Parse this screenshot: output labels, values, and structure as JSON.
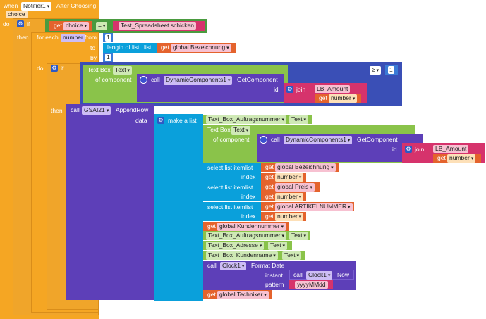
{
  "event": {
    "when": "when",
    "component": "Notifier1",
    "event": "After Choosing",
    "param": "choice"
  },
  "if1": {
    "do": "do",
    "if": "if",
    "get": "get",
    "var": "choice",
    "op": "=",
    "text": "Test_Spreadsheet schicken",
    "then": "then"
  },
  "foreach": {
    "label": "for each",
    "var": "number",
    "from": "from",
    "from_val": "1",
    "to": "to",
    "length_of_list": "length of list",
    "list": "list",
    "get": "get",
    "to_var": "global Bezeichnung",
    "by": "by",
    "by_val": "1",
    "do": "do"
  },
  "if2": {
    "if": "if",
    "textbox": "Text Box",
    "prop": "Text",
    "of_component": "of component",
    "call": "call",
    "dc": "DynamicComponents1",
    "method": "GetComponent",
    "id": "id",
    "join": "join",
    "join_str": "LB_Amount",
    "get": "get",
    "get_var": "number",
    "cmp_op": "≥",
    "cmp_val": "1",
    "then": "then"
  },
  "append": {
    "call": "call",
    "component": "GSAI21",
    "method": "AppendRow",
    "data": "data",
    "make_list": "make a list"
  },
  "list_items": {
    "tb_auftrag": "Text_Box_Auftragsnummer",
    "text": "Text",
    "tb2": "Text Box",
    "tb2_prop": "Text",
    "of_component": "of component",
    "call": "call",
    "dc": "DynamicComponents1",
    "method": "GetComponent",
    "id": "id",
    "join": "join",
    "join_str": "LB_Amount",
    "get": "get",
    "get_var": "number",
    "sel1": "select list item",
    "list": "list",
    "index": "index",
    "sel1_list": "global Bezeichnung",
    "sel2_list": "global Preis",
    "sel3_list": "global ARTIKELNUMMER",
    "kunden": "global Kundennummer",
    "tb_auftrag2": "Text_Box_Auftragsnummer",
    "tb_adresse": "Text_Box_Adresse",
    "tb_kundenname": "Text_Box_Kundenname",
    "clock": "Clock1",
    "format_date": "Format Date",
    "instant": "instant",
    "now": "Now",
    "pattern": "pattern",
    "pattern_val": "yyyyMMdd",
    "techniker": "global Techniker"
  }
}
